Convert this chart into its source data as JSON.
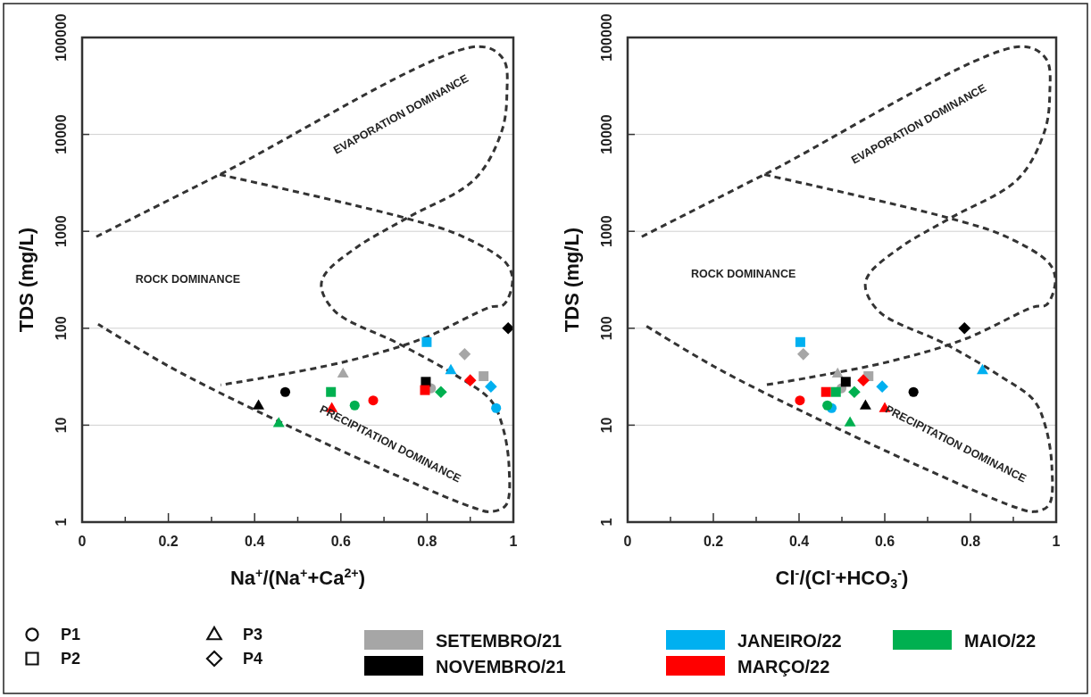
{
  "chart_data": [
    {
      "type": "scatter",
      "xlabel": "Na$^{+}$/(Na$^{+}$+Ca$^{2+}$)",
      "ylabel": "TDS (mg/L)",
      "log": "y",
      "grid": "y",
      "xlim": [
        0,
        1
      ],
      "xticks": [
        0,
        {
          "value": 0.1,
          "label": null
        },
        0.2,
        {
          "value": 0.3,
          "label": null
        },
        0.4,
        {
          "value": 0.5,
          "label": null
        },
        0.6,
        {
          "value": 0.7,
          "label": null
        },
        0.8,
        {
          "value": 0.9,
          "label": null
        },
        1
      ],
      "ylim": [
        1,
        100000
      ],
      "yticks": [
        1,
        10,
        100,
        1000,
        10000,
        100000
      ],
      "annotations": [
        "EVAPORATION DOMINANCE",
        "ROCK DOMINANCE",
        "PRECIPITATION DOMINANCE"
      ],
      "series": [
        {
          "type": "line",
          "color": "#333333",
          "line_style": "dashed",
          "marker": "none",
          "x": [
            0.033,
            0.319,
            0.919,
            0.977,
            0.985,
            0.973,
            0.911,
            0.753,
            0.638,
            0.563,
            0.555,
            0.588,
            0.735,
            0.865,
            0.948,
            0.975,
            0.99,
            0.983,
            0.948,
            0.907,
            0.685,
            0.41,
            0.203,
            0.037
          ],
          "values": [
            880,
            3850,
            80700,
            59600,
            26300,
            10800,
            3470,
            1370,
            690,
            360,
            260,
            147,
            69,
            33,
            18,
            9.7,
            3.7,
            1.5,
            1.28,
            1.41,
            3.7,
            13.7,
            40,
            110
          ]
        },
        {
          "type": "line",
          "color": "#333333",
          "line_style": "dashed",
          "marker": "none",
          "x": [
            0.319,
            0.75,
            0.886,
            0.985,
            0.998,
            0.977,
            0.948,
            0.789,
            0.617,
            0.424,
            0.321
          ],
          "values": [
            3850,
            1370,
            870,
            460,
            300,
            174,
            166,
            78,
            46,
            31,
            26
          ]
        },
        {
          "color": "#a6a6a6",
          "marker": "circle",
          "x": [
            0.809
          ],
          "values": [
            24
          ]
        },
        {
          "color": "#a6a6a6",
          "marker": "square",
          "x": [
            0.931
          ],
          "values": [
            32
          ]
        },
        {
          "color": "#a6a6a6",
          "marker": "triangle",
          "x": [
            0.605
          ],
          "values": [
            34
          ]
        },
        {
          "color": "#a6a6a6",
          "marker": "diamond",
          "x": [
            0.887
          ],
          "values": [
            54
          ]
        },
        {
          "color": "#000000",
          "marker": "circle",
          "x": [
            0.471
          ],
          "values": [
            22
          ]
        },
        {
          "color": "#000000",
          "marker": "square",
          "x": [
            0.797
          ],
          "values": [
            28
          ]
        },
        {
          "color": "#000000",
          "marker": "triangle",
          "x": [
            0.409
          ],
          "values": [
            16
          ]
        },
        {
          "color": "#000000",
          "marker": "diamond",
          "x": [
            0.988
          ],
          "values": [
            100
          ]
        },
        {
          "color": "#00b0f0",
          "marker": "circle",
          "x": [
            0.96
          ],
          "values": [
            15
          ]
        },
        {
          "color": "#00b0f0",
          "marker": "square",
          "x": [
            0.799
          ],
          "values": [
            72
          ]
        },
        {
          "color": "#00b0f0",
          "marker": "triangle",
          "x": [
            0.855
          ],
          "values": [
            37
          ]
        },
        {
          "color": "#00b0f0",
          "marker": "diamond",
          "x": [
            0.948
          ],
          "values": [
            25
          ]
        },
        {
          "color": "#ff0000",
          "marker": "circle",
          "x": [
            0.675
          ],
          "values": [
            18
          ]
        },
        {
          "color": "#ff0000",
          "marker": "square",
          "x": [
            0.795
          ],
          "values": [
            23
          ]
        },
        {
          "color": "#ff0000",
          "marker": "triangle",
          "x": [
            0.579
          ],
          "values": [
            15
          ]
        },
        {
          "color": "#ff0000",
          "marker": "diamond",
          "x": [
            0.9
          ],
          "values": [
            29
          ]
        },
        {
          "color": "#00b050",
          "marker": "circle",
          "x": [
            0.632
          ],
          "values": [
            16
          ]
        },
        {
          "color": "#00b050",
          "marker": "square",
          "x": [
            0.577
          ],
          "values": [
            22
          ]
        },
        {
          "color": "#00b050",
          "marker": "triangle",
          "x": [
            0.456
          ],
          "values": [
            10.5
          ]
        },
        {
          "color": "#00b050",
          "marker": "diamond",
          "x": [
            0.832
          ],
          "values": [
            22
          ]
        }
      ]
    },
    {
      "type": "scatter",
      "xlabel": "Cl$^{-}$/(Cl$^{-}$+HCO$_{3}$$^{-}$)",
      "ylabel": "TDS (mg/L)",
      "log": "y",
      "grid": "y",
      "xlim": [
        0,
        1
      ],
      "xticks": [
        0,
        {
          "value": 0.1,
          "label": null
        },
        0.2,
        {
          "value": 0.3,
          "label": null
        },
        0.4,
        {
          "value": 0.5,
          "label": null
        },
        0.6,
        {
          "value": 0.7,
          "label": null
        },
        0.8,
        {
          "value": 0.9,
          "label": null
        },
        1
      ],
      "ylim": [
        1,
        100000
      ],
      "yticks": [
        1,
        10,
        100,
        1000,
        10000,
        100000
      ],
      "annotations": [
        "EVAPORATION DOMINANCE",
        "ROCK DOMINANCE",
        "PRECIPITATION DOMINANCE"
      ],
      "series": [
        {
          "type": "line",
          "color": "#333333",
          "line_style": "dashed",
          "marker": "none",
          "x": [
            0.033,
            0.319,
            0.919,
            0.977,
            0.985,
            0.973,
            0.911,
            0.753,
            0.638,
            0.563,
            0.555,
            0.588,
            0.741,
            0.865,
            0.948,
            0.975,
            0.99,
            0.983,
            0.948,
            0.907,
            0.685,
            0.41,
            0.203,
            0.037
          ],
          "values": [
            880,
            3850,
            80700,
            59600,
            26300,
            10800,
            3470,
            1370,
            690,
            360,
            260,
            147,
            69,
            33,
            18,
            9.7,
            3.7,
            1.5,
            1.28,
            1.41,
            3.7,
            13.7,
            40,
            110
          ]
        },
        {
          "type": "line",
          "color": "#333333",
          "line_style": "dashed",
          "marker": "none",
          "x": [
            0.319,
            0.75,
            0.886,
            0.985,
            0.998,
            0.977,
            0.948,
            0.789,
            0.617,
            0.424,
            0.321
          ],
          "values": [
            3850,
            1370,
            870,
            460,
            300,
            174,
            166,
            78,
            46,
            31,
            26
          ]
        },
        {
          "color": "#a6a6a6",
          "marker": "circle",
          "x": [
            0.499
          ],
          "values": [
            24
          ]
        },
        {
          "color": "#a6a6a6",
          "marker": "square",
          "x": [
            0.562
          ],
          "values": [
            32
          ]
        },
        {
          "color": "#a6a6a6",
          "marker": "triangle",
          "x": [
            0.49
          ],
          "values": [
            34
          ]
        },
        {
          "color": "#a6a6a6",
          "marker": "diamond",
          "x": [
            0.41
          ],
          "values": [
            54
          ]
        },
        {
          "color": "#000000",
          "marker": "circle",
          "x": [
            0.667
          ],
          "values": [
            22
          ]
        },
        {
          "color": "#000000",
          "marker": "square",
          "x": [
            0.509
          ],
          "values": [
            28
          ]
        },
        {
          "color": "#000000",
          "marker": "triangle",
          "x": [
            0.555
          ],
          "values": [
            16
          ]
        },
        {
          "color": "#000000",
          "marker": "diamond",
          "x": [
            0.786
          ],
          "values": [
            100
          ]
        },
        {
          "color": "#00b0f0",
          "marker": "circle",
          "x": [
            0.476
          ],
          "values": [
            15
          ]
        },
        {
          "color": "#00b0f0",
          "marker": "square",
          "x": [
            0.403
          ],
          "values": [
            72
          ]
        },
        {
          "color": "#00b0f0",
          "marker": "triangle",
          "x": [
            0.828
          ],
          "values": [
            37
          ]
        },
        {
          "color": "#00b0f0",
          "marker": "diamond",
          "x": [
            0.594
          ],
          "values": [
            25
          ]
        },
        {
          "color": "#ff0000",
          "marker": "circle",
          "x": [
            0.402
          ],
          "values": [
            18
          ]
        },
        {
          "color": "#ff0000",
          "marker": "square",
          "x": [
            0.463
          ],
          "values": [
            22
          ]
        },
        {
          "color": "#ff0000",
          "marker": "triangle",
          "x": [
            0.6
          ],
          "values": [
            15
          ]
        },
        {
          "color": "#ff0000",
          "marker": "diamond",
          "x": [
            0.55
          ],
          "values": [
            29
          ]
        },
        {
          "color": "#00b050",
          "marker": "circle",
          "x": [
            0.466
          ],
          "values": [
            16
          ]
        },
        {
          "color": "#00b050",
          "marker": "square",
          "x": [
            0.486
          ],
          "values": [
            22
          ]
        },
        {
          "color": "#00b050",
          "marker": "triangle",
          "x": [
            0.519
          ],
          "values": [
            10.7
          ]
        },
        {
          "color": "#00b050",
          "marker": "diamond",
          "x": [
            0.529
          ],
          "values": [
            22
          ]
        }
      ]
    },
    {
      "type": "other",
      "legend": "bottom",
      "series": [
        {
          "name": "P1",
          "marker": "circle"
        },
        {
          "name": "P2",
          "marker": "square"
        },
        {
          "name": "P3",
          "marker": "triangle"
        },
        {
          "name": "P4",
          "marker": "diamond"
        },
        {
          "name": "SETEMBRO/21",
          "color": "#a6a6a6"
        },
        {
          "name": "NOVEMBRO/21",
          "color": "#000000"
        },
        {
          "name": "JANEIRO/22",
          "color": "#00b0f0"
        },
        {
          "name": "MARÇO/22",
          "color": "#ff0000"
        },
        {
          "name": "MAIO/22",
          "color": "#00b050"
        }
      ]
    }
  ]
}
